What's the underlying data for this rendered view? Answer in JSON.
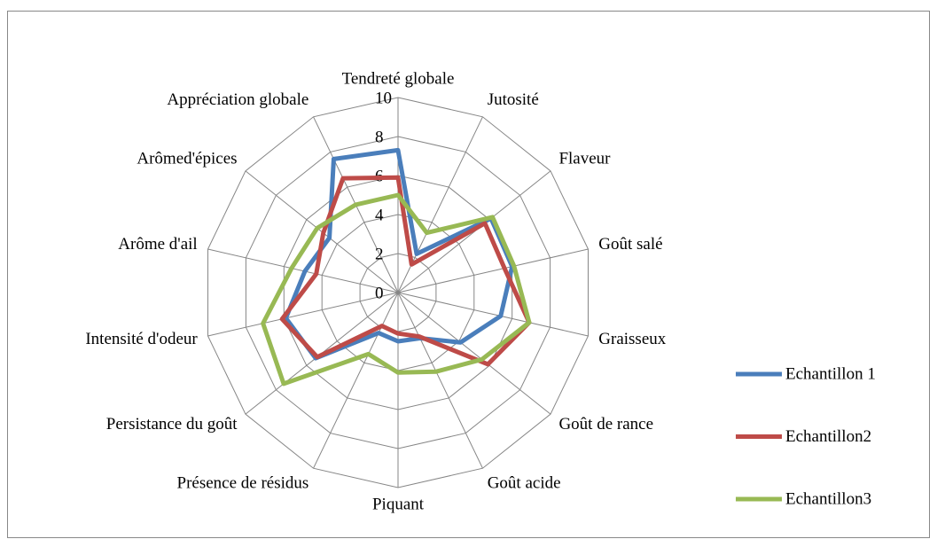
{
  "chart_data": {
    "type": "radar",
    "categories": [
      "Tendreté globale",
      "Jutosité",
      "Flaveur",
      "Goût salé",
      "Graisseux",
      "Goût de rance",
      "Goût acide",
      "Piquant",
      "Présence de résidus",
      "Persistance du goût",
      "Intensité d'odeur",
      "Arôme d'ail",
      "Arômed'épices",
      "Appréciation globale"
    ],
    "series": [
      {
        "name": "Echantillon 1",
        "color": "#4a7ebb",
        "values": [
          7.3,
          2.2,
          6.1,
          6.0,
          5.4,
          4.1,
          2.6,
          2.5,
          2.3,
          5.4,
          5.9,
          4.9,
          4.5,
          7.6
        ]
      },
      {
        "name": "Echantillon2",
        "color": "#be4b48",
        "values": [
          5.9,
          1.6,
          5.7,
          5.6,
          6.9,
          5.9,
          2.5,
          2.1,
          1.9,
          5.3,
          6.1,
          4.3,
          4.9,
          6.5
        ]
      },
      {
        "name": "Echantillon3",
        "color": "#98b954",
        "values": [
          5.0,
          3.4,
          6.2,
          6.1,
          6.9,
          5.5,
          4.5,
          4.1,
          3.5,
          7.5,
          7.1,
          5.6,
          5.3,
          5.0
        ]
      }
    ],
    "ylim": [
      0,
      10
    ],
    "yticks": [
      0,
      2,
      4,
      6,
      8,
      10
    ],
    "grid": true,
    "legend": "right"
  }
}
